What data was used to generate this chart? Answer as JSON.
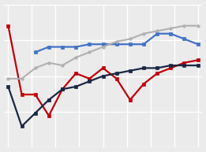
{
  "background_color": "#ebebeb",
  "grid_color": "#ffffff",
  "series": {
    "red": {
      "color": "#c0000a",
      "linewidth": 1.6,
      "marker": "s",
      "markersize": 2.8,
      "x": [
        0,
        1,
        2,
        3,
        4,
        5,
        6,
        7,
        8,
        9,
        10,
        11,
        12,
        13,
        14
      ],
      "y": [
        88,
        62,
        62,
        54,
        64,
        70,
        68,
        72,
        68,
        60,
        66,
        70,
        72,
        74,
        75
      ]
    },
    "blue": {
      "color": "#4472c4",
      "linewidth": 1.6,
      "marker": "s",
      "markersize": 2.8,
      "x": [
        2,
        3,
        4,
        5,
        6,
        7,
        8,
        9,
        10,
        11,
        12,
        13,
        14
      ],
      "y": [
        78,
        80,
        80,
        80,
        81,
        81,
        81,
        81,
        81,
        85,
        85,
        83,
        81
      ]
    },
    "gray": {
      "color": "#b0b0b0",
      "linewidth": 1.5,
      "marker": "o",
      "markersize": 2.5,
      "x": [
        0,
        1,
        2,
        3,
        4,
        5,
        6,
        7,
        8,
        9,
        10,
        11,
        12,
        13,
        14
      ],
      "y": [
        68,
        68,
        72,
        74,
        73,
        76,
        78,
        80,
        82,
        83,
        85,
        86,
        87,
        88,
        88
      ]
    },
    "darknavy": {
      "color": "#1a2744",
      "linewidth": 1.6,
      "marker": "s",
      "markersize": 2.8,
      "x": [
        0,
        1,
        2,
        3,
        4,
        5,
        6,
        7,
        8,
        9,
        10,
        11,
        12,
        13,
        14
      ],
      "y": [
        65,
        50,
        55,
        60,
        64,
        65,
        67,
        69,
        70,
        71,
        72,
        72,
        73,
        73,
        73
      ]
    }
  },
  "ylim": [
    42,
    96
  ],
  "xlim": [
    -0.3,
    14.3
  ],
  "n_xgrid": 9,
  "n_ygrid": 5
}
